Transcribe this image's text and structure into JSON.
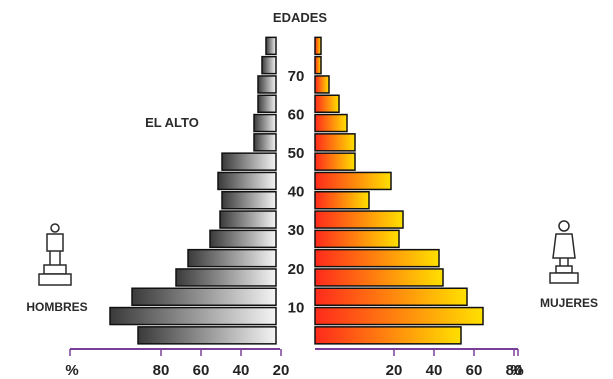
{
  "chart_data": {
    "type": "bar",
    "subtype": "population-pyramid",
    "title": "EL ALTO",
    "center_axis_label": "EDADES",
    "age_labels": [
      "10",
      "20",
      "30",
      "40",
      "50",
      "60",
      "70"
    ],
    "left_label": "HOMBRES",
    "right_label": "MUJERES",
    "x_unit": "%",
    "x_tick_labels_left": [
      "%",
      "80",
      "60",
      "40",
      "20"
    ],
    "x_tick_labels_right": [
      "20",
      "40",
      "60",
      "80",
      "%"
    ],
    "x_range": [
      0,
      80
    ],
    "colors": {
      "men_dark": "#3a3a3a",
      "men_light": "#f4f4f4",
      "women_light": "#ffe000",
      "women_dark": "#ff2a1c",
      "axis": "#7a3f98"
    },
    "series": [
      {
        "name": "HOMBRES",
        "values": [
          69,
          83,
          72,
          50,
          44,
          33,
          28,
          27,
          29,
          27,
          11,
          11,
          9,
          9,
          7,
          5
        ]
      },
      {
        "name": "MUJERES",
        "values": [
          73,
          84,
          76,
          64,
          62,
          42,
          44,
          27,
          38,
          20,
          20,
          16,
          12,
          7,
          3,
          3
        ]
      }
    ]
  }
}
